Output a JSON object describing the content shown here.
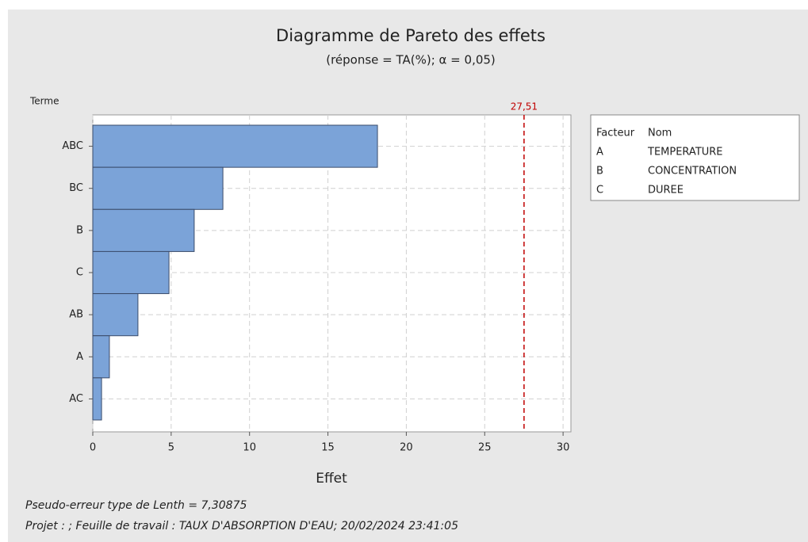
{
  "chart_data": {
    "type": "bar",
    "orientation": "horizontal",
    "title": "Diagramme de Pareto des effets",
    "subtitle": "(réponse = TA(%); α = 0,05)",
    "y_label": "Terme",
    "x_label": "Effet",
    "categories": [
      "ABC",
      "BC",
      "B",
      "C",
      "AB",
      "A",
      "AC"
    ],
    "values": [
      18.16,
      8.3,
      6.47,
      4.86,
      2.88,
      1.06,
      0.56
    ],
    "color": "#7ba3d8",
    "xlim": [
      0,
      30.5
    ],
    "xticks": [
      0,
      5,
      10,
      15,
      20,
      25,
      30
    ],
    "grid": true,
    "reference_line": {
      "value": 27.51,
      "label": "27,51",
      "color": "#c00000"
    },
    "legend": {
      "headers": [
        "Facteur",
        "Nom"
      ],
      "rows": [
        [
          "A",
          "TEMPERATURE"
        ],
        [
          "B",
          "CONCENTRATION"
        ],
        [
          "C",
          "DUREE"
        ]
      ]
    },
    "footnotes": [
      "Pseudo-erreur type de Lenth = 7,30875",
      "Projet : ; Feuille de travail : TAUX D'ABSORPTION D'EAU; 20/02/2024 23:41:05"
    ]
  }
}
